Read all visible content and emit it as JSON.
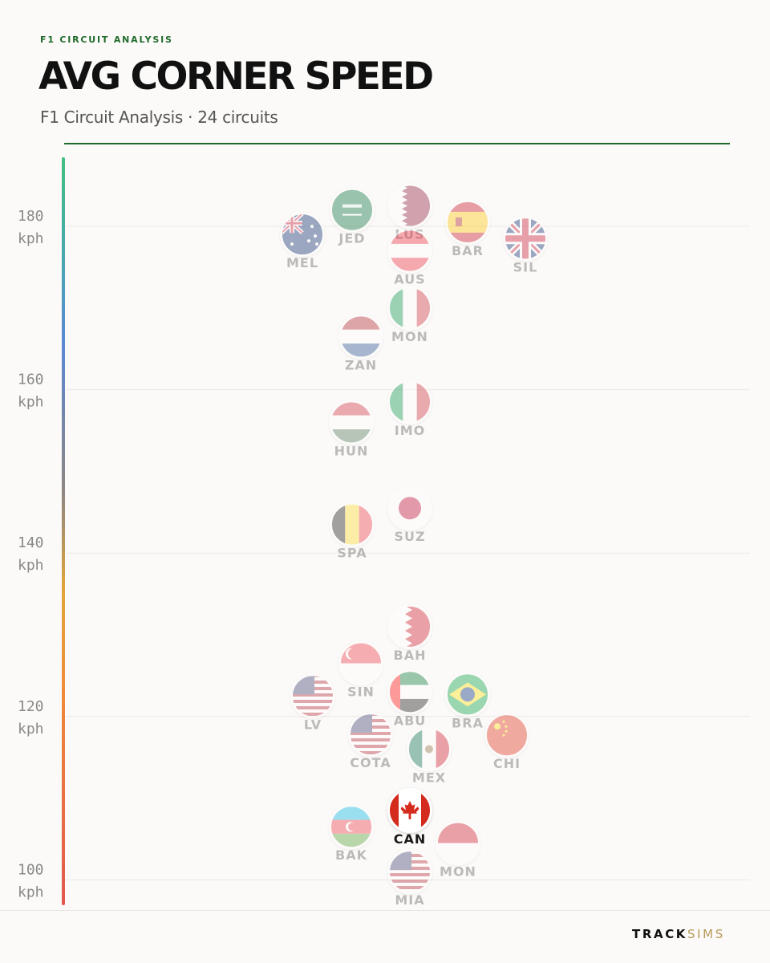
{
  "header": {
    "eyebrow": "F1 CIRCUIT ANALYSIS",
    "title": "AVG CORNER SPEED",
    "subtitle": "F1 Circuit Analysis · 24 circuits"
  },
  "brand": {
    "part1": "TRACK",
    "part2": "SIMS"
  },
  "colors": {
    "accent": "#1f6a2a",
    "grid": "#ebe9e5",
    "tick_text": "#8a8a8a",
    "label_faded": "#9a9a9a",
    "label_highlight": "#1a1a1a"
  },
  "chart_data": {
    "type": "scatter",
    "title": "AVG CORNER SPEED",
    "ylabel": "",
    "ylim": [
      97,
      188
    ],
    "grid": true,
    "y_ticks": [
      {
        "value": 180,
        "label": "180",
        "unit": "kph"
      },
      {
        "value": 160,
        "label": "160",
        "unit": "kph"
      },
      {
        "value": 140,
        "label": "140",
        "unit": "kph"
      },
      {
        "value": 120,
        "label": "120",
        "unit": "kph"
      },
      {
        "value": 100,
        "label": "100",
        "unit": "kph"
      }
    ],
    "highlight": "CAN",
    "points": [
      {
        "label": "JED",
        "value": 182.0,
        "flag": "saudi-arabia-flag-icon"
      },
      {
        "label": "LUS",
        "value": 182.5,
        "flag": "qatar-flag-icon"
      },
      {
        "label": "BAR",
        "value": 180.5,
        "flag": "spain-flag-icon"
      },
      {
        "label": "MEL",
        "value": 179.0,
        "flag": "australia-flag-icon"
      },
      {
        "label": "SIL",
        "value": 178.5,
        "flag": "great-britain-flag-icon"
      },
      {
        "label": "AUS",
        "value": 177.0,
        "flag": "austria-flag-icon"
      },
      {
        "label": "MON",
        "value": 170.0,
        "flag": "italy-flag-icon"
      },
      {
        "label": "ZAN",
        "value": 166.5,
        "flag": "netherlands-flag-icon"
      },
      {
        "label": "IMO",
        "value": 158.5,
        "flag": "italy-flag-icon"
      },
      {
        "label": "HUN",
        "value": 156.0,
        "flag": "hungary-flag-icon"
      },
      {
        "label": "SUZ",
        "value": 145.5,
        "flag": "japan-flag-icon"
      },
      {
        "label": "SPA",
        "value": 143.5,
        "flag": "belgium-flag-icon"
      },
      {
        "label": "BAH",
        "value": 131.0,
        "flag": "bahrain-flag-icon"
      },
      {
        "label": "SIN",
        "value": 126.5,
        "flag": "singapore-flag-icon"
      },
      {
        "label": "ABU",
        "value": 123.0,
        "flag": "uae-flag-icon"
      },
      {
        "label": "BRA",
        "value": 122.7,
        "flag": "brazil-flag-icon"
      },
      {
        "label": "LV",
        "value": 122.5,
        "flag": "usa-flag-icon"
      },
      {
        "label": "COTA",
        "value": 117.8,
        "flag": "usa-flag-icon"
      },
      {
        "label": "CHI",
        "value": 117.7,
        "flag": "china-flag-icon"
      },
      {
        "label": "MEX",
        "value": 116.0,
        "flag": "mexico-flag-icon"
      },
      {
        "label": "CAN",
        "value": 108.5,
        "flag": "canada-flag-icon"
      },
      {
        "label": "BAK",
        "value": 106.5,
        "flag": "azerbaijan-flag-icon"
      },
      {
        "label": "MON",
        "value": 104.5,
        "flag": "monaco-flag-icon"
      },
      {
        "label": "MIA",
        "value": 101.0,
        "flag": "usa-flag-icon"
      }
    ]
  }
}
